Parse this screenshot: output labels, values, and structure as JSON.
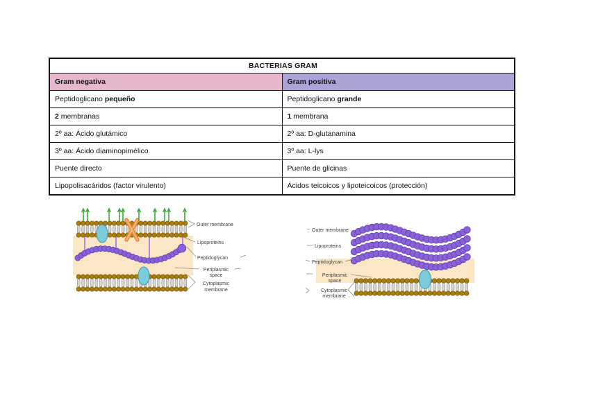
{
  "table": {
    "title": "BACTERIAS GRAM",
    "header": {
      "left": "Gram negativa",
      "right": "Gram positiva"
    },
    "rows": [
      {
        "left": {
          "pre": "Peptidoglicano ",
          "bold": "pequeño",
          "post": ""
        },
        "right": {
          "pre": "Peptidoglicano ",
          "bold": "grande",
          "post": ""
        }
      },
      {
        "left": {
          "pre": "",
          "bold": "2",
          "post": " membranas"
        },
        "right": {
          "pre": "",
          "bold": "1",
          "post": " membrana"
        }
      },
      {
        "left": {
          "pre": "2º aa: Ácido glutámico",
          "bold": "",
          "post": ""
        },
        "right": {
          "pre": "2º aa: D-glutanamina",
          "bold": "",
          "post": ""
        }
      },
      {
        "left": {
          "pre": "3º aa: Ácido diaminopimélico",
          "bold": "",
          "post": ""
        },
        "right": {
          "pre": "3º aa: L-lys",
          "bold": "",
          "post": ""
        }
      },
      {
        "left": {
          "pre": "Puente directo",
          "bold": "",
          "post": ""
        },
        "right": {
          "pre": "Puente de glicinas",
          "bold": "",
          "post": ""
        }
      },
      {
        "left": {
          "pre": "Lipopolisacáridos (factor virulento)",
          "bold": "",
          "post": ""
        },
        "right": {
          "pre": "Ácidos teicoicos y lipoteicoicos (protección)",
          "bold": "",
          "post": ""
        }
      }
    ]
  },
  "diagrams": {
    "gram_negative": {
      "labels": {
        "outer_membrane": "Outer membrane",
        "lipoproteins": "Lipoproteins",
        "peptidoglycan": "Peptidoglycan",
        "periplasmic_line1": "Periplasmic",
        "periplasmic_line2": "space",
        "cytoplasmic_line1": "Cytoplasmic",
        "cytoplasmic_line2": "membrane"
      }
    },
    "gram_positive": {
      "labels": {
        "outer_membrane": "Outer membrane",
        "lipoproteins": "Lipoproteins",
        "peptidoglycan": "Peptidoglycan",
        "periplasmic_line1": "Periplasmic",
        "periplasmic_line2": "space",
        "cytoplasmic_line1": "Cytoplasmic",
        "cytoplasmic_line2": "membrane"
      }
    }
  },
  "colors": {
    "header_pink": "#e5b8cd",
    "header_purple": "#aea3d6",
    "table_border": "#161616",
    "periplasm_peach": "#fbe7c5",
    "lipid_head": "#ab7e0c",
    "lipid_head_stroke": "#6f5106",
    "lipid_tail": "#dad6cf",
    "lipid_tail_stroke": "#8f8a83",
    "peptidoglycan_bead": "#8a62d8",
    "peptidoglycan_bead_stroke": "#5d3cae",
    "lipoprotein_purple": "#9478e8",
    "protein_cyan": "#7cccdb",
    "protein_cyan_stroke": "#3e98a8",
    "porin_orange": "#e8873c",
    "porin_orange_light": "#f6b878",
    "lps_green": "#2fa32c"
  }
}
